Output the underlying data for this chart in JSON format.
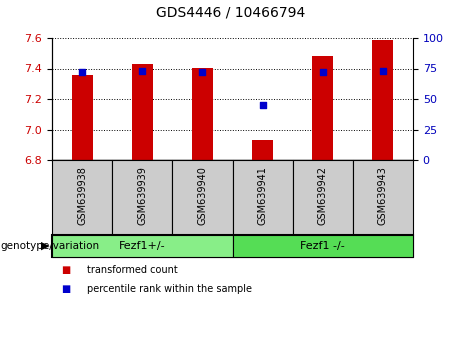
{
  "title": "GDS4446 / 10466794",
  "samples": [
    "GSM639938",
    "GSM639939",
    "GSM639940",
    "GSM639941",
    "GSM639942",
    "GSM639943"
  ],
  "transformed_counts": [
    7.36,
    7.43,
    7.4,
    6.93,
    7.48,
    7.59
  ],
  "percentile_ranks": [
    72,
    73,
    72,
    45,
    72,
    73
  ],
  "ylim_left": [
    6.8,
    7.6
  ],
  "ylim_right": [
    0,
    100
  ],
  "yticks_left": [
    6.8,
    7.0,
    7.2,
    7.4,
    7.6
  ],
  "yticks_right": [
    0,
    25,
    50,
    75,
    100
  ],
  "bar_color": "#cc0000",
  "dot_color": "#0000cc",
  "bar_width": 0.35,
  "groups": [
    {
      "label": "Fezf1+/-",
      "indices": [
        0,
        1,
        2
      ],
      "color": "#88ee88"
    },
    {
      "label": "Fezf1 -/-",
      "indices": [
        3,
        4,
        5
      ],
      "color": "#55dd55"
    }
  ],
  "group_row_label": "genotype/variation",
  "legend_red": "transformed count",
  "legend_blue": "percentile rank within the sample",
  "tick_label_color_left": "#cc0000",
  "tick_label_color_right": "#0000bb",
  "sample_box_color": "#cccccc",
  "title_fontsize": 10,
  "tick_fontsize": 8,
  "sample_fontsize": 7,
  "group_fontsize": 8,
  "legend_fontsize": 7
}
